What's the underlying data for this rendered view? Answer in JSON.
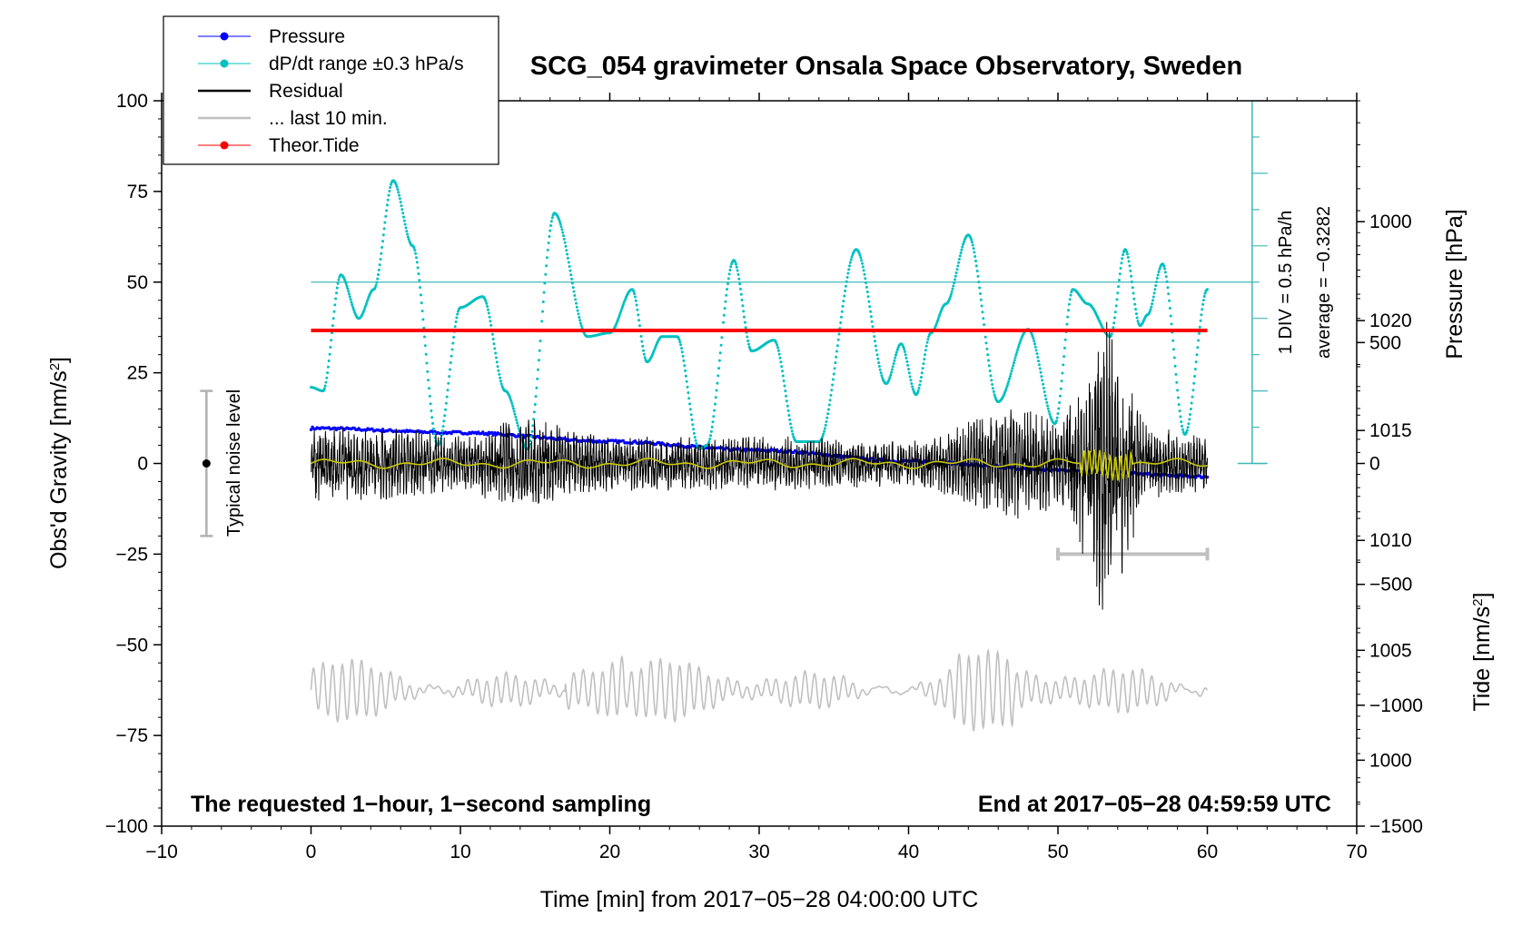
{
  "chart_data": {
    "type": "line",
    "title": "SCG_054 gravimeter Onsala Space Observatory, Sweden",
    "xlabel": "Time [min] from 2017−05−28 04:00:00 UTC",
    "ylabel_left": "Obs'd Gravity [nm/s",
    "ylabel_left_sup": "2",
    "ylabel_left_end": "]",
    "ylabel_right_pressure": "Pressure [hPa]",
    "ylabel_right_tide": "Tide [nm/s",
    "ylabel_right_tide_sup": "2",
    "ylabel_right_tide_end": "]",
    "xlim": [
      -10,
      70
    ],
    "ylim": [
      -100,
      100
    ],
    "pressure_lim": [
      997,
      1030
    ],
    "tide_lim": [
      -1500,
      1500
    ],
    "x_ticks": [
      "−10",
      "0",
      "10",
      "20",
      "30",
      "40",
      "50",
      "60",
      "70"
    ],
    "y_ticks": [
      "−100",
      "−75",
      "−50",
      "−25",
      "0",
      "25",
      "50",
      "75",
      "100"
    ],
    "pressure_ticks": [
      "1000",
      "1005",
      "1010",
      "1015",
      "1020"
    ],
    "tide_ticks": [
      "−1500",
      "−1000",
      "−500",
      "0",
      "500",
      "1000"
    ],
    "legend": [
      {
        "label": "Pressure",
        "color": "#0000ff",
        "marker": true
      },
      {
        "label": "dP/dt range ±0.3 hPa/s",
        "color": "#00c0c0",
        "marker": true
      },
      {
        "label": "Residual",
        "color": "#000000",
        "marker": false
      },
      {
        "label": "... last 10 min.",
        "color": "#c0c0c0",
        "marker": false
      },
      {
        "label": "Theor.Tide",
        "color": "#ff0000",
        "marker": true
      }
    ],
    "legend_position": "top-left",
    "annotations": {
      "noise_label": "Typical noise level",
      "div_label": "1 DIV = 0.5 hPa/h",
      "average_label": "average = −0.3282",
      "left_note": "The requested 1−hour, 1−second sampling",
      "right_note": "End at 2017−05−28 04:59:59 UTC"
    },
    "noise_level": {
      "x": -7,
      "y_low": -20,
      "y_high": 20
    },
    "dpdt_baseline_y": 50,
    "series": [
      {
        "name": "Pressure",
        "axis": "pressure",
        "color": "#0000ff",
        "x": [
          0,
          10,
          20,
          30,
          40,
          50,
          60
        ],
        "y": [
          1015.1,
          1014.9,
          1014.5,
          1014.1,
          1013.6,
          1013.2,
          1012.9
        ]
      },
      {
        "name": "dP/dt range ±0.3 hPa/s",
        "axis": "gravity",
        "color": "#00c0c0",
        "x": [
          0,
          0.8,
          2.0,
          3.2,
          4.2,
          5.5,
          6.8,
          8.5,
          10.0,
          11.5,
          13.0,
          14.5,
          16.3,
          18.5,
          20.0,
          21.5,
          22.5,
          23.5,
          24.5,
          26.0,
          26.5,
          28.3,
          29.5,
          31.0,
          32.5,
          34.0,
          36.5,
          38.5,
          39.5,
          40.5,
          41.5,
          42.5,
          44.0,
          46.0,
          48.0,
          49.8,
          51.0,
          52.0,
          53.5,
          54.5,
          55.5,
          56.0,
          57.0,
          58.5,
          60.0
        ],
        "y": [
          21,
          20,
          52,
          40,
          48,
          78,
          60,
          5,
          43,
          46,
          20,
          4,
          69,
          35,
          36,
          48,
          28,
          35,
          35,
          4,
          5,
          56,
          31,
          34,
          6,
          6,
          59,
          22,
          33,
          19,
          36,
          44,
          63,
          17,
          37,
          11,
          48,
          44,
          35,
          59,
          38,
          41,
          55,
          8,
          48
        ]
      },
      {
        "name": "Residual",
        "axis": "gravity",
        "color": "#000000",
        "x": [
          0,
          5,
          10,
          14,
          20,
          30,
          40,
          47,
          50,
          52,
          53,
          54,
          56,
          60
        ],
        "y": [
          0,
          0,
          0,
          0,
          0,
          0,
          0,
          0,
          0,
          0,
          0,
          0,
          0,
          0
        ],
        "envelope": [
          8,
          8,
          6,
          10,
          6,
          6,
          5,
          12,
          10,
          20,
          35,
          25,
          8,
          6
        ]
      },
      {
        "name": "Theor.Tide",
        "axis": "tide",
        "color": "#ff0000",
        "x": [
          0,
          60
        ],
        "y": [
          550,
          550
        ]
      }
    ]
  }
}
